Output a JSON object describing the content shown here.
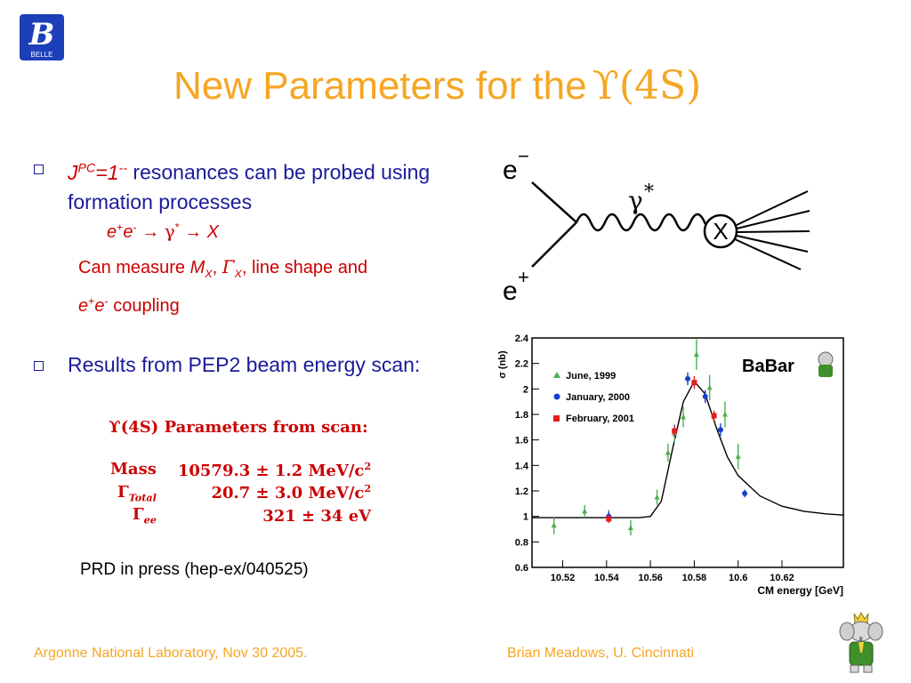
{
  "title": {
    "text": "New Parameters for the",
    "symbol": "ϒ(4S)"
  },
  "logo": {
    "icon": "babar-b-logo",
    "label": "BELLE"
  },
  "bullet1": {
    "jpc_j": "J",
    "jpc_sup": "PC",
    "jpc_eq": "=1",
    "jpc_exp": "--",
    "text": " resonances can be probed using formation processes",
    "reaction": {
      "e1": "e",
      "e1sup": "+",
      "e2": "e",
      "e2sup": "-",
      "arrow1": "→",
      "gamma": "γ",
      "gammasup": "*",
      "arrow2": "→",
      "x": "X"
    },
    "measure": {
      "pre": "Can measure ",
      "mx": "M",
      "mxsub": "X",
      "comma1": ", ",
      "gx": "Γ",
      "gxsub": "X",
      "post": ", line shape and",
      "e1": "e",
      "e1sup": "+",
      "e2": "e",
      "e2sup": "-",
      "post2": " coupling"
    }
  },
  "feynman": {
    "e_minus": "e",
    "e_minus_sup": "−",
    "e_plus": "e",
    "e_plus_sup": "+",
    "gamma": "γ",
    "gamma_sup": "*",
    "x": "X"
  },
  "bullet2": {
    "text": "Results from PEP2 beam energy scan:",
    "param_title": "ϒ(4S) Parameters from scan:",
    "params": [
      {
        "name": "Mass",
        "name_sub": "",
        "value": "10579.3 ± 1.2 MeV/c",
        "unit_sup": "2"
      },
      {
        "name": "Γ",
        "name_sub": "Total",
        "value": "20.7 ± 3.0 MeV/c",
        "unit_sup": "2"
      },
      {
        "name": "Γ",
        "name_sub": "ee",
        "value": "321 ± 34 eV",
        "unit_sup": ""
      }
    ],
    "reference": "PRD in press (hep-ex/040525)"
  },
  "chart_data": {
    "type": "scatter",
    "ylabel": "σ (nb)",
    "xlabel": "CM energy [GeV]",
    "xlim": [
      10.506,
      10.648
    ],
    "ylim": [
      0.6,
      2.4
    ],
    "xticks": [
      "10.52",
      "10.54",
      "10.56",
      "10.58",
      "10.6",
      "10.62"
    ],
    "yticks": [
      "0.6",
      "0.8",
      "1",
      "1.2",
      "1.4",
      "1.6",
      "1.8",
      "2",
      "2.2",
      "2.4"
    ],
    "legend_position": "top-left",
    "logo_text": "BaBar",
    "series": [
      {
        "name": "June, 1999",
        "color": "#4caf50",
        "marker": "triangle",
        "x": [
          10.516,
          10.53,
          10.541,
          10.551,
          10.563,
          10.568,
          10.571,
          10.575,
          10.581,
          10.587,
          10.594,
          10.6
        ],
        "y": [
          0.93,
          1.04,
          1.0,
          0.91,
          1.15,
          1.5,
          1.65,
          1.78,
          2.27,
          2.01,
          1.8,
          1.47
        ],
        "err": [
          0.07,
          0.05,
          0.05,
          0.06,
          0.06,
          0.07,
          0.07,
          0.08,
          0.12,
          0.1,
          0.1,
          0.1
        ]
      },
      {
        "name": "January, 2000",
        "color": "#1a3fcf",
        "marker": "circle",
        "x": [
          10.541,
          10.571,
          10.577,
          10.585,
          10.592,
          10.603
        ],
        "y": [
          1.0,
          1.67,
          2.08,
          1.94,
          1.68,
          1.18
        ],
        "err": [
          0.04,
          0.05,
          0.05,
          0.05,
          0.05,
          0.03
        ]
      },
      {
        "name": "February, 2001",
        "color": "#e02020",
        "marker": "square",
        "x": [
          10.541,
          10.571,
          10.58,
          10.589
        ],
        "y": [
          0.98,
          1.67,
          2.05,
          1.79
        ],
        "err": [
          0.03,
          0.04,
          0.05,
          0.04
        ]
      }
    ],
    "fit_curve": {
      "color": "#000000",
      "x": [
        10.506,
        10.52,
        10.54,
        10.555,
        10.56,
        10.565,
        10.57,
        10.575,
        10.58,
        10.585,
        10.59,
        10.595,
        10.6,
        10.61,
        10.62,
        10.63,
        10.64,
        10.648
      ],
      "y": [
        0.99,
        0.99,
        0.99,
        0.99,
        1.0,
        1.12,
        1.52,
        1.9,
        2.06,
        1.96,
        1.7,
        1.47,
        1.32,
        1.16,
        1.08,
        1.04,
        1.02,
        1.01
      ]
    }
  },
  "footer": {
    "left": "Argonne National Laboratory, Nov 30 2005.",
    "right": "Brian Meadows, U. Cincinnati"
  }
}
